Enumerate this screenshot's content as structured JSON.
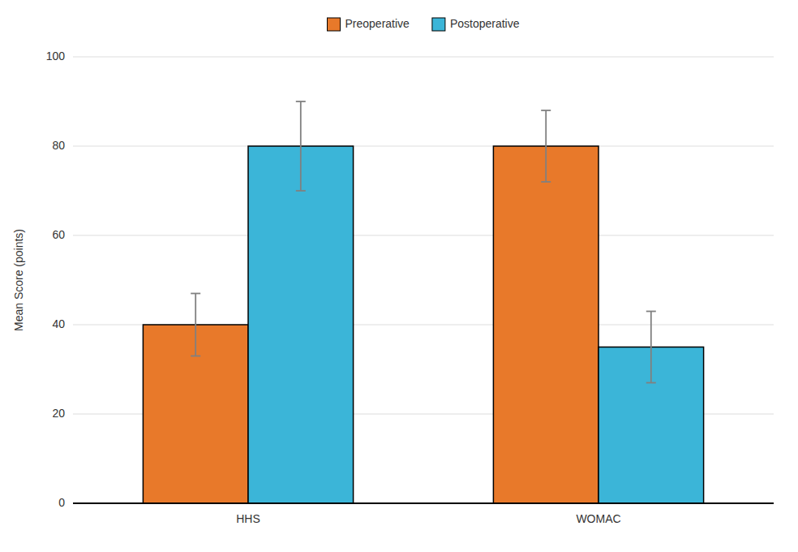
{
  "chart_data": {
    "type": "bar",
    "categories": [
      "HHS",
      "WOMAC"
    ],
    "series": [
      {
        "name": "Preoperative",
        "color": "#E8792A",
        "values": [
          40,
          80
        ],
        "errors": [
          7,
          8
        ]
      },
      {
        "name": "Postoperative",
        "color": "#3BB5D8",
        "values": [
          80,
          35
        ],
        "errors": [
          10,
          8
        ]
      }
    ],
    "y_label": "Mean Score (points)",
    "ylim": [
      0,
      100
    ],
    "yticks": [
      0,
      20,
      40,
      60,
      80,
      100
    ],
    "grid": true,
    "legend": "top"
  }
}
